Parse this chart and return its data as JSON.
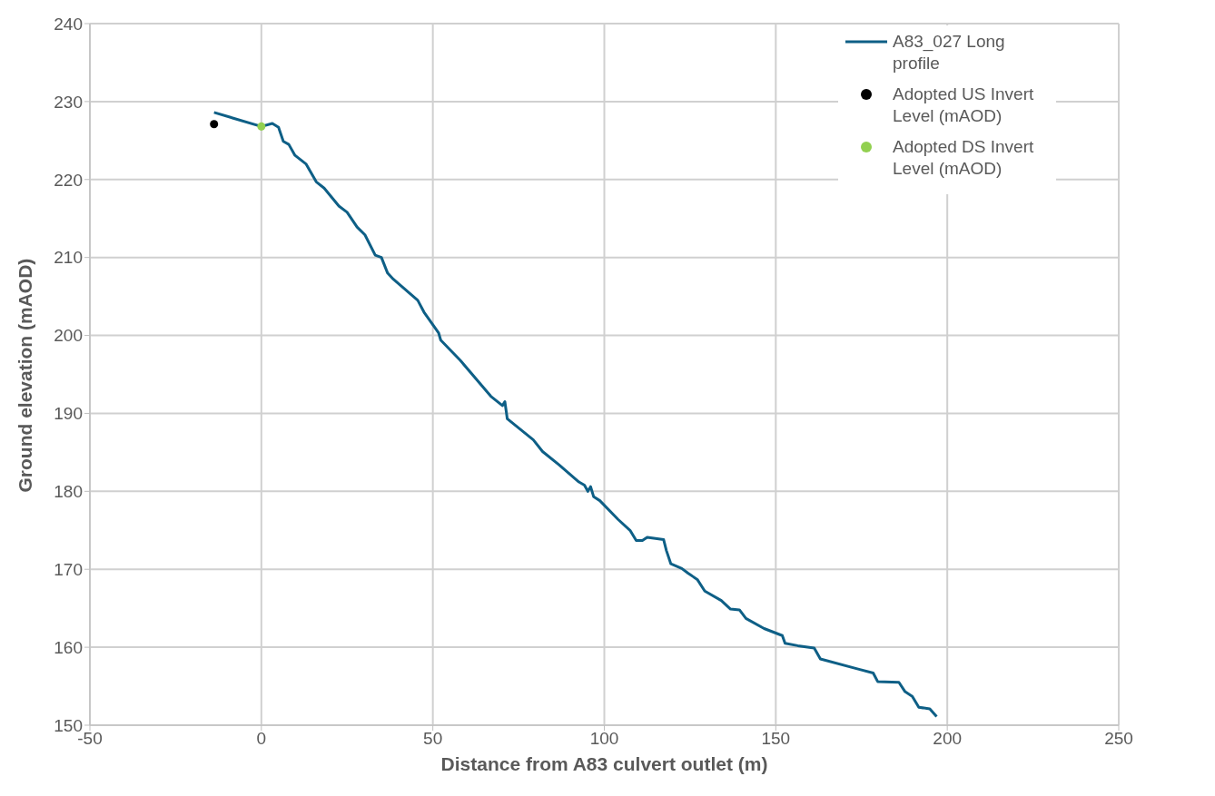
{
  "chart_data": {
    "type": "line",
    "xlabel": "Distance from A83 culvert outlet (m)",
    "ylabel": "Ground elevation (mAOD)",
    "xlim": [
      -50,
      250
    ],
    "xticks": [
      -50,
      0,
      50,
      100,
      150,
      200,
      250
    ],
    "ylim": [
      150,
      240
    ],
    "yticks": [
      150,
      160,
      170,
      180,
      190,
      200,
      210,
      220,
      230,
      240
    ],
    "grid": true,
    "legend": "top right",
    "line_style": "solid",
    "series": [
      {
        "name": "A83_027 Long profile",
        "marker": "none",
        "color": "#0e5f86",
        "x": [
          -13.8,
          0,
          3.2,
          5,
          6.4,
          8,
          9.8,
          13,
          16,
          18.3,
          22.6,
          25,
          27.9,
          30.2,
          33.2,
          35,
          36.8,
          38.5,
          45.6,
          47.4,
          51.7,
          52.3,
          58,
          66.9,
          70.3,
          71,
          71.7,
          79.3,
          82,
          86.8,
          92.6,
          94.2,
          95.2,
          96,
          96.9,
          98.7,
          104,
          107.5,
          109.3,
          111.1,
          112.5,
          117.3,
          118.1,
          119.4,
          122.6,
          124.4,
          127.1,
          129.3,
          134.1,
          136.8,
          139.4,
          141.3,
          146.6,
          151.9,
          152.7,
          156.4,
          161.2,
          163,
          174,
          178.4,
          179.7,
          185.9,
          187.7,
          189.8,
          191.7,
          194.9,
          196.9
        ],
        "values": [
          228.6,
          226.8,
          227.2,
          226.7,
          224.9,
          224.5,
          223.1,
          222,
          219.7,
          218.9,
          216.6,
          215.8,
          213.9,
          212.9,
          210.3,
          210,
          208,
          207.2,
          204.5,
          203,
          200.3,
          199.4,
          196.8,
          192.2,
          191,
          191.5,
          189.3,
          186.6,
          185.1,
          183.4,
          181.2,
          180.8,
          180,
          180.6,
          179.3,
          178.8,
          176.4,
          175,
          173.7,
          173.7,
          174.1,
          173.8,
          172.4,
          170.7,
          170.1,
          169.5,
          168.7,
          167.2,
          166,
          164.9,
          164.8,
          163.7,
          162.4,
          161.5,
          160.5,
          160.2,
          159.9,
          158.5,
          157.2,
          156.7,
          155.6,
          155.5,
          154.3,
          153.7,
          152.3,
          152.1,
          151.1
        ]
      },
      {
        "name": "Adopted US Invert Level (mAOD)",
        "type": "scatter",
        "marker": "circle",
        "color": "#000000",
        "x": [
          -13.8
        ],
        "values": [
          227.1
        ]
      },
      {
        "name": "Adopted DS Invert Level (mAOD)",
        "type": "scatter",
        "marker": "circle",
        "color": "#92d050",
        "x": [
          0
        ],
        "values": [
          226.8
        ]
      }
    ]
  }
}
